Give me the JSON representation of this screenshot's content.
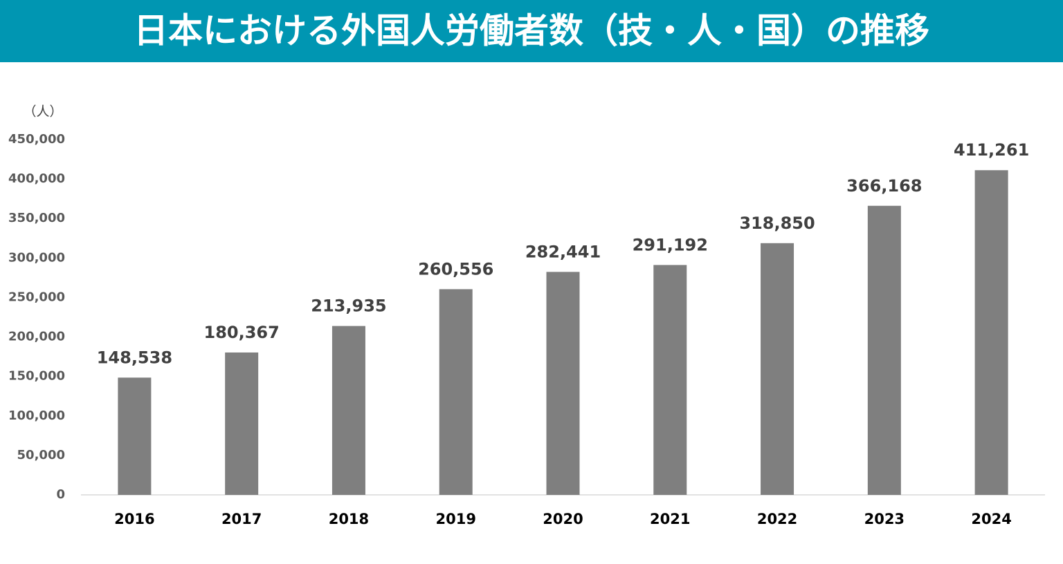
{
  "chart_data": {
    "type": "bar",
    "title": "日本における外国人労働者数（技・人・国）の推移",
    "y_label": "（人）",
    "categories": [
      "2016",
      "2017",
      "2018",
      "2019",
      "2020",
      "2021",
      "2022",
      "2023",
      "2024"
    ],
    "values": [
      148538,
      180367,
      213935,
      260556,
      282441,
      291192,
      318850,
      366168,
      411261
    ],
    "value_labels": [
      "148,538",
      "180,367",
      "213,935",
      "260,556",
      "282,441",
      "291,192",
      "318,850",
      "366,168",
      "411,261"
    ],
    "color": "#7f7f7f",
    "ylim": [
      0,
      450000
    ],
    "yticks": [
      0,
      {
        "value": 50000,
        "label": "50,000"
      },
      {
        "value": 100000,
        "label": "100,000"
      },
      {
        "value": 150000,
        "label": "150,000"
      },
      {
        "value": 200000,
        "label": "200,000"
      },
      {
        "value": 250000,
        "label": "250,000"
      },
      {
        "value": 300000,
        "label": "300,000"
      },
      {
        "value": 350000,
        "label": "350,000"
      },
      {
        "value": 400000,
        "label": "400,000"
      },
      {
        "value": 450000,
        "label": "450,000"
      }
    ],
    "grid": false
  }
}
